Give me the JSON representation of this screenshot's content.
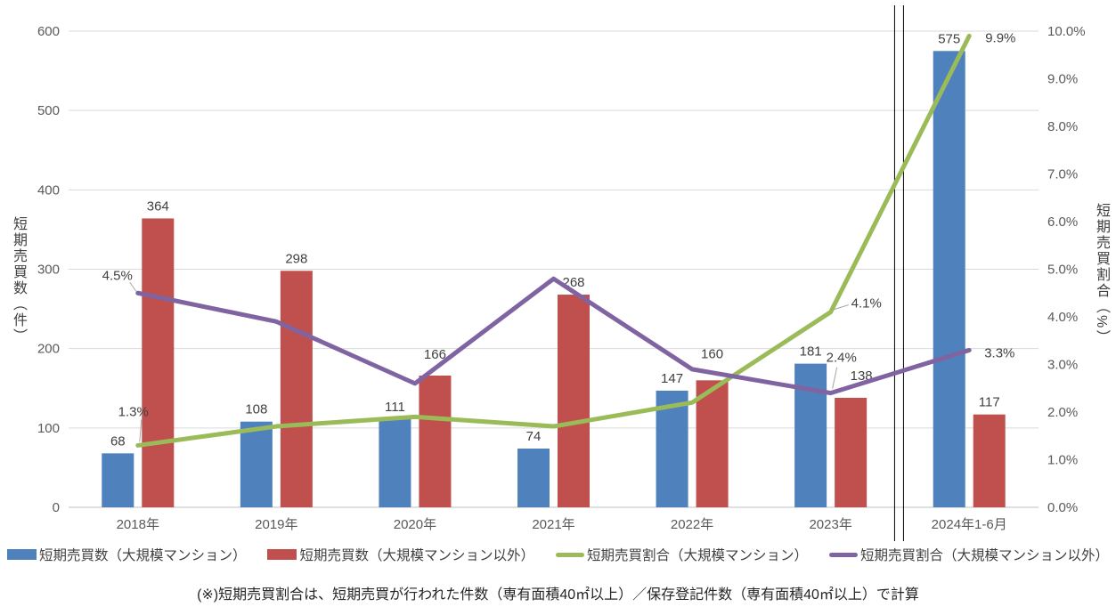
{
  "chart_data": {
    "type": "bar",
    "subtype": "bar+line combo, dual axis",
    "categories": [
      "2018年",
      "2019年",
      "2020年",
      "2021年",
      "2022年",
      "2023年",
      "2024年1-6月"
    ],
    "bar_series": [
      {
        "name": "短期売買数（大規模マンション）",
        "color": "#4F81BD",
        "axis": "left",
        "values": [
          68,
          108,
          111,
          74,
          147,
          181,
          575
        ]
      },
      {
        "name": "短期売買数（大規模マンション以外）",
        "color": "#C0504D",
        "axis": "left",
        "values": [
          364,
          298,
          166,
          268,
          160,
          138,
          117
        ]
      }
    ],
    "line_series": [
      {
        "name": "短期売買割合（大規模マンション）",
        "color": "#9BBB59",
        "axis": "right",
        "values": [
          1.3,
          1.7,
          1.9,
          1.7,
          2.2,
          4.1,
          9.9
        ]
      },
      {
        "name": "短期売買割合（大規模マンション以外）",
        "color": "#8064A2",
        "axis": "right",
        "values": [
          4.5,
          3.9,
          2.6,
          4.8,
          2.9,
          2.4,
          3.3
        ]
      }
    ],
    "point_labels": [
      {
        "series": 0,
        "index": 0,
        "text": "1.3%"
      },
      {
        "series": 0,
        "index": 5,
        "text": "4.1%"
      },
      {
        "series": 0,
        "index": 6,
        "text": "9.9%"
      },
      {
        "series": 1,
        "index": 0,
        "text": "4.5%"
      },
      {
        "series": 1,
        "index": 5,
        "text": "2.4%"
      },
      {
        "series": 1,
        "index": 6,
        "text": "3.3%"
      }
    ],
    "left_axis": {
      "title": "短期売買数（件）",
      "min": 0,
      "max": 600,
      "step": 100,
      "tick_labels": [
        "0",
        "100",
        "200",
        "300",
        "400",
        "500",
        "600"
      ]
    },
    "right_axis": {
      "title": "短期売買割合（%）",
      "min": 0,
      "max": 10,
      "step": 1,
      "tick_labels": [
        "0.0%",
        "1.0%",
        "2.0%",
        "3.0%",
        "4.0%",
        "5.0%",
        "6.0%",
        "7.0%",
        "8.0%",
        "9.0%",
        "10.0%"
      ]
    },
    "separator": {
      "between": [
        "2023年",
        "2024年1-6月"
      ],
      "style": "double-vertical-line"
    },
    "grid": "horizontal-only",
    "legend_position": "bottom"
  },
  "legend": {
    "items": [
      {
        "label": "短期売買数（大規模マンション）",
        "color": "#4F81BD",
        "swatch": "rect"
      },
      {
        "label": "短期売買数（大規模マンション以外）",
        "color": "#C0504D",
        "swatch": "rect"
      },
      {
        "label": "短期売買割合（大規模マンション）",
        "color": "#9BBB59",
        "swatch": "line"
      },
      {
        "label": "短期売買割合（大規模マンション以外）",
        "color": "#8064A2",
        "swatch": "line"
      }
    ]
  },
  "footnote": "(※)短期売買割合は、短期売買が行われた件数（専有面積40㎡以上）／保存登記件数（専有面積40㎡以上）で計算",
  "colors": {
    "grid": "#D9D9D9",
    "axis_line": "#BFBFBF",
    "tick_text": "#595959",
    "label_text": "#404040",
    "separator": "#000000",
    "leader": "#A6A6A6"
  }
}
